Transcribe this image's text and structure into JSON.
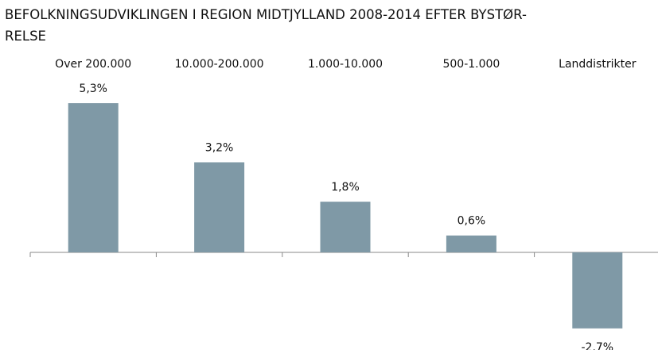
{
  "chart_data": {
    "type": "bar",
    "title": [
      "BEFOLKNINGSUDVIKLINGEN I REGION MIDTJYLLAND 2008-2014 EFTER BYSTØR-",
      "RELSE"
    ],
    "categories": [
      "Over 200.000",
      "10.000-200.000",
      "1.000-10.000",
      "500-1.000",
      "Landdistrikter"
    ],
    "values": [
      5.3,
      3.2,
      1.8,
      0.6,
      -2.7
    ],
    "value_labels": [
      "5,3%",
      "3,2%",
      "1,8%",
      "0,6%",
      "-2.7%"
    ],
    "color": "#7f99a6"
  }
}
